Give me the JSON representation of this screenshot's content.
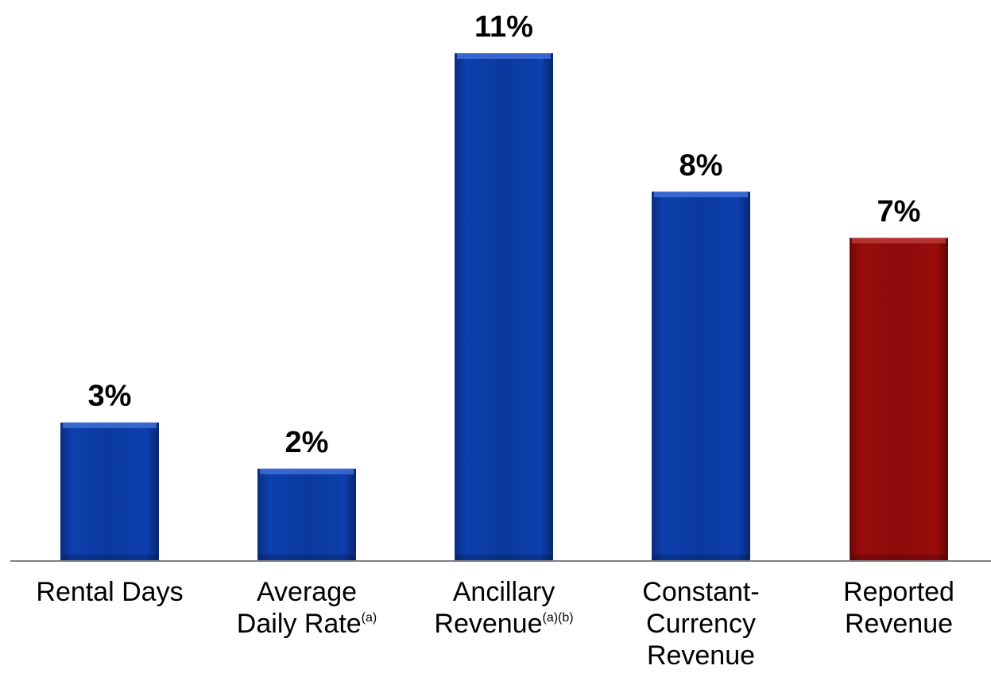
{
  "chart_data": {
    "type": "bar",
    "categories": [
      {
        "lines": [
          "Rental Days"
        ],
        "sup": ""
      },
      {
        "lines": [
          "Average",
          "Daily Rate"
        ],
        "sup": "(a)"
      },
      {
        "lines": [
          "Ancillary",
          "Revenue"
        ],
        "sup": "(a)(b)"
      },
      {
        "lines": [
          "Constant-",
          "Currency",
          "Revenue"
        ],
        "sup": ""
      },
      {
        "lines": [
          "Reported",
          "Revenue"
        ],
        "sup": ""
      }
    ],
    "values": [
      3,
      2,
      11,
      8,
      7
    ],
    "data_labels": [
      "3%",
      "2%",
      "11%",
      "8%",
      "7%"
    ],
    "bar_colors": [
      "#0a3a9e",
      "#0a3a9e",
      "#0a3a9e",
      "#0a3a9e",
      "#8b0a0a"
    ],
    "ylim": [
      0,
      11
    ],
    "grid": false,
    "legend": "none"
  }
}
